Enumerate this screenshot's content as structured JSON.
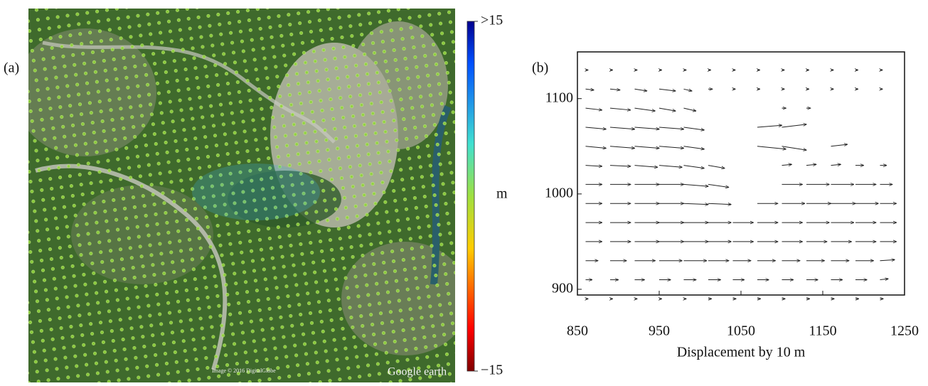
{
  "chart_data": [
    {
      "type": "image",
      "panel_label": "(a)",
      "image_credit": "Image © 2016 DigitalGlobe",
      "watermark": "Google earth",
      "colorbar": {
        "label": "m",
        "lim": [
          -15,
          15
        ],
        "ticks": [
          {
            "value": 15,
            "label": ">15"
          },
          {
            "value": -15,
            "label": "−15"
          }
        ]
      }
    },
    {
      "type": "quiver",
      "panel_label": "(b)",
      "xlabel": "Displacement by 10 m",
      "xlim": [
        850,
        1250
      ],
      "ylim": [
        894,
        1149
      ],
      "xticks": [
        850,
        950,
        1050,
        1150,
        1250
      ],
      "yticks": [
        900,
        1000,
        1100
      ],
      "color": "#222222",
      "x": [
        860,
        890,
        920,
        950,
        980,
        1010,
        1040,
        1070,
        1100,
        1130,
        1160,
        1190,
        1220
      ],
      "y": [
        890,
        910,
        930,
        950,
        970,
        990,
        1010,
        1030,
        1050,
        1070,
        1090,
        1110,
        1130
      ],
      "u": [
        [
          3,
          3,
          3,
          3,
          3,
          4,
          4,
          4,
          4,
          4,
          4,
          4,
          4
        ],
        [
          8,
          10,
          12,
          14,
          15,
          15,
          14,
          14,
          14,
          14,
          14,
          14,
          10
        ],
        [
          15,
          20,
          25,
          28,
          28,
          25,
          22,
          22,
          22,
          22,
          22,
          22,
          18
        ],
        [
          20,
          25,
          30,
          30,
          30,
          28,
          25,
          25,
          25,
          25,
          25,
          25,
          20
        ],
        [
          20,
          25,
          30,
          30,
          30,
          28,
          25,
          25,
          25,
          28,
          28,
          25,
          20
        ],
        [
          20,
          25,
          30,
          30,
          30,
          28,
          null,
          25,
          28,
          30,
          30,
          28,
          20
        ],
        [
          20,
          25,
          30,
          30,
          30,
          25,
          null,
          null,
          25,
          28,
          28,
          25,
          15
        ],
        [
          20,
          25,
          28,
          28,
          25,
          20,
          null,
          null,
          12,
          12,
          12,
          10,
          8
        ],
        [
          25,
          30,
          30,
          30,
          25,
          null,
          null,
          35,
          30,
          null,
          20,
          null,
          null
        ],
        [
          25,
          30,
          30,
          30,
          25,
          null,
          null,
          30,
          30,
          null,
          null,
          null,
          null
        ],
        [
          20,
          25,
          25,
          20,
          15,
          null,
          null,
          null,
          5,
          5,
          null,
          null,
          null
        ],
        [
          10,
          12,
          15,
          20,
          10,
          5,
          3,
          3,
          3,
          3,
          3,
          3,
          3
        ],
        [
          3,
          3,
          3,
          3,
          3,
          3,
          3,
          3,
          3,
          3,
          3,
          3,
          3
        ]
      ],
      "v": [
        [
          0,
          0,
          0,
          0,
          0,
          0,
          0,
          0,
          0,
          0,
          0,
          0,
          0
        ],
        [
          0,
          0,
          0,
          0,
          0,
          0,
          0,
          0,
          0,
          0,
          0,
          0,
          1
        ],
        [
          0,
          0,
          0,
          0,
          0,
          0,
          0,
          0,
          0,
          0,
          0,
          0,
          1
        ],
        [
          0,
          0,
          0,
          0,
          0,
          0,
          0,
          0,
          0,
          0,
          0,
          0,
          0
        ],
        [
          0,
          0,
          0,
          0,
          0,
          0,
          0,
          0,
          0,
          0,
          0,
          0,
          0
        ],
        [
          0,
          0,
          0,
          0,
          -1,
          -1,
          null,
          0,
          0,
          0,
          0,
          0,
          0
        ],
        [
          0,
          0,
          0,
          0,
          -2,
          -3,
          null,
          null,
          0,
          0,
          0,
          0,
          0
        ],
        [
          -1,
          -1,
          -2,
          -2,
          -3,
          -3,
          null,
          null,
          1,
          1,
          1,
          0,
          0
        ],
        [
          -2,
          -2,
          -2,
          -2,
          -3,
          null,
          null,
          -3,
          -4,
          null,
          2,
          null,
          null
        ],
        [
          -2,
          -2,
          -2,
          -2,
          -3,
          null,
          null,
          2,
          3,
          null,
          null,
          null,
          null
        ],
        [
          -2,
          -2,
          -3,
          -3,
          -3,
          null,
          null,
          null,
          0,
          0,
          null,
          null,
          null
        ],
        [
          -1,
          -1,
          -2,
          -2,
          -2,
          0,
          0,
          0,
          0,
          0,
          0,
          0,
          0
        ],
        [
          0,
          0,
          0,
          0,
          0,
          0,
          0,
          0,
          0,
          0,
          0,
          0,
          0
        ]
      ]
    }
  ]
}
